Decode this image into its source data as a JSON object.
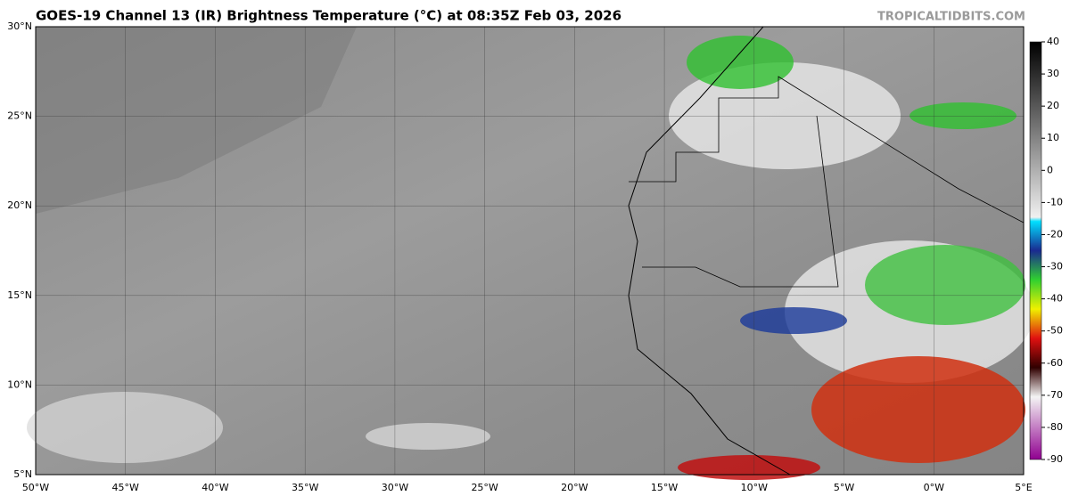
{
  "header": {
    "title": "GOES-19 Channel 13 (IR) Brightness Temperature (°C) at 08:35Z Feb 03, 2026",
    "credit": "TROPICALTIDBITS.COM"
  },
  "map": {
    "lat_labels": [
      "5°N",
      "10°N",
      "15°N",
      "20°N",
      "25°N",
      "30°N"
    ],
    "lon_labels": [
      "50°W",
      "45°W",
      "40°W",
      "35°W",
      "30°W",
      "25°W",
      "20°W",
      "15°W",
      "10°W",
      "5°W",
      "0°W",
      "5°E"
    ]
  },
  "colorbar": {
    "ticks": [
      40,
      30,
      20,
      10,
      0,
      -10,
      -20,
      -30,
      -40,
      -50,
      -60,
      -70,
      -80,
      -90
    ]
  }
}
